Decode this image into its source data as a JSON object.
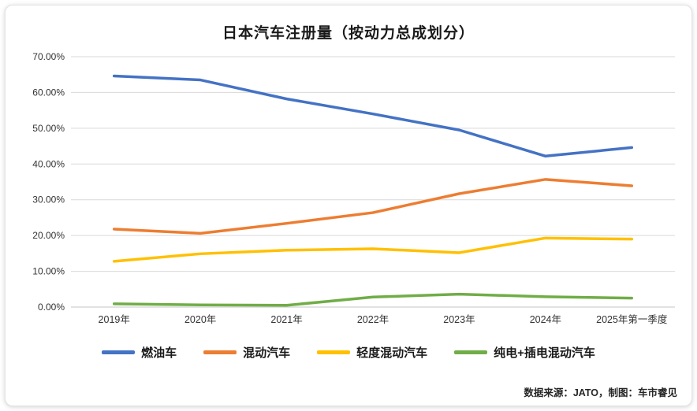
{
  "title": "日本汽车注册量（按动力总成划分）",
  "source_note": "数据来源：JATO，制图：车市睿见",
  "chart_data": {
    "type": "line",
    "title": "日本汽车注册量（按动力总成划分）",
    "categories": [
      "2019年",
      "2020年",
      "2021年",
      "2022年",
      "2023年",
      "2024年",
      "2025年第一季度"
    ],
    "series": [
      {
        "name": "燃油车",
        "color": "#4472C4",
        "values": [
          64.6,
          63.5,
          58.2,
          54.0,
          49.5,
          42.2,
          44.6
        ]
      },
      {
        "name": "混动汽车",
        "color": "#ED7D31",
        "values": [
          21.8,
          20.6,
          23.4,
          26.4,
          31.7,
          35.7,
          33.9
        ]
      },
      {
        "name": "轻度混动汽车",
        "color": "#FFC000",
        "values": [
          12.8,
          14.9,
          15.9,
          16.3,
          15.2,
          19.3,
          19.0
        ]
      },
      {
        "name": "纯电+插电混动汽车",
        "color": "#70AD47",
        "values": [
          0.9,
          0.6,
          0.5,
          2.8,
          3.6,
          2.9,
          2.5
        ]
      }
    ],
    "ylim": [
      0,
      70
    ],
    "ytick_step": 10,
    "ytick_format": "percent_2dp",
    "grid": true,
    "legend_position": "bottom",
    "grid_color": "#d9d9d9",
    "axis_label_color": "#333333"
  }
}
